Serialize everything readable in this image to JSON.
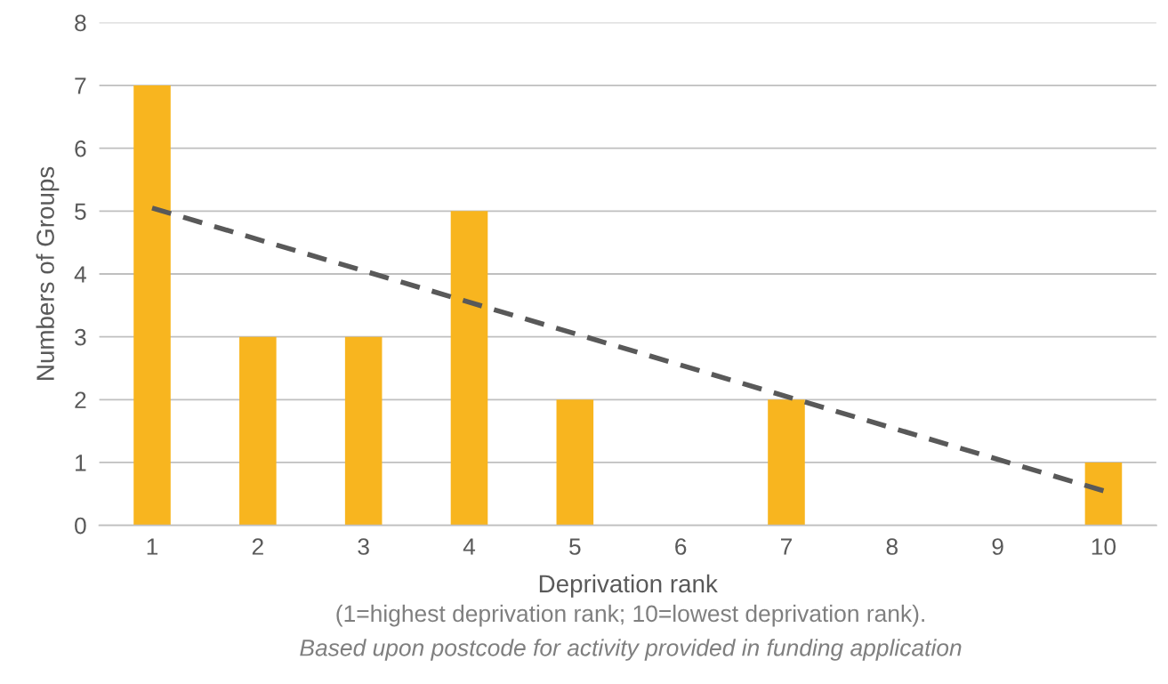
{
  "chart_data": {
    "type": "bar",
    "categories": [
      "1",
      "2",
      "3",
      "4",
      "5",
      "6",
      "7",
      "8",
      "9",
      "10"
    ],
    "series": [
      {
        "color": "#f8b51f",
        "values": [
          7,
          3,
          3,
          5,
          2,
          0,
          2,
          0,
          0,
          1
        ]
      },
      {
        "type": "line",
        "color": "#595959",
        "x": [
          "1",
          "10"
        ],
        "values": [
          5.05,
          0.55
        ],
        "line_style": "dashed"
      }
    ],
    "xlabel": "Deprivation rank",
    "ylabel": "Numbers of Groups",
    "ylim": [
      0,
      8
    ],
    "yticks": [
      0,
      1,
      2,
      3,
      4,
      5,
      6,
      7,
      8
    ],
    "grid": "y",
    "legend": false,
    "annotations": [
      "(1=highest deprivation rank; 10=lowest deprivation rank).",
      "Based upon postcode for activity provided in funding application"
    ]
  }
}
